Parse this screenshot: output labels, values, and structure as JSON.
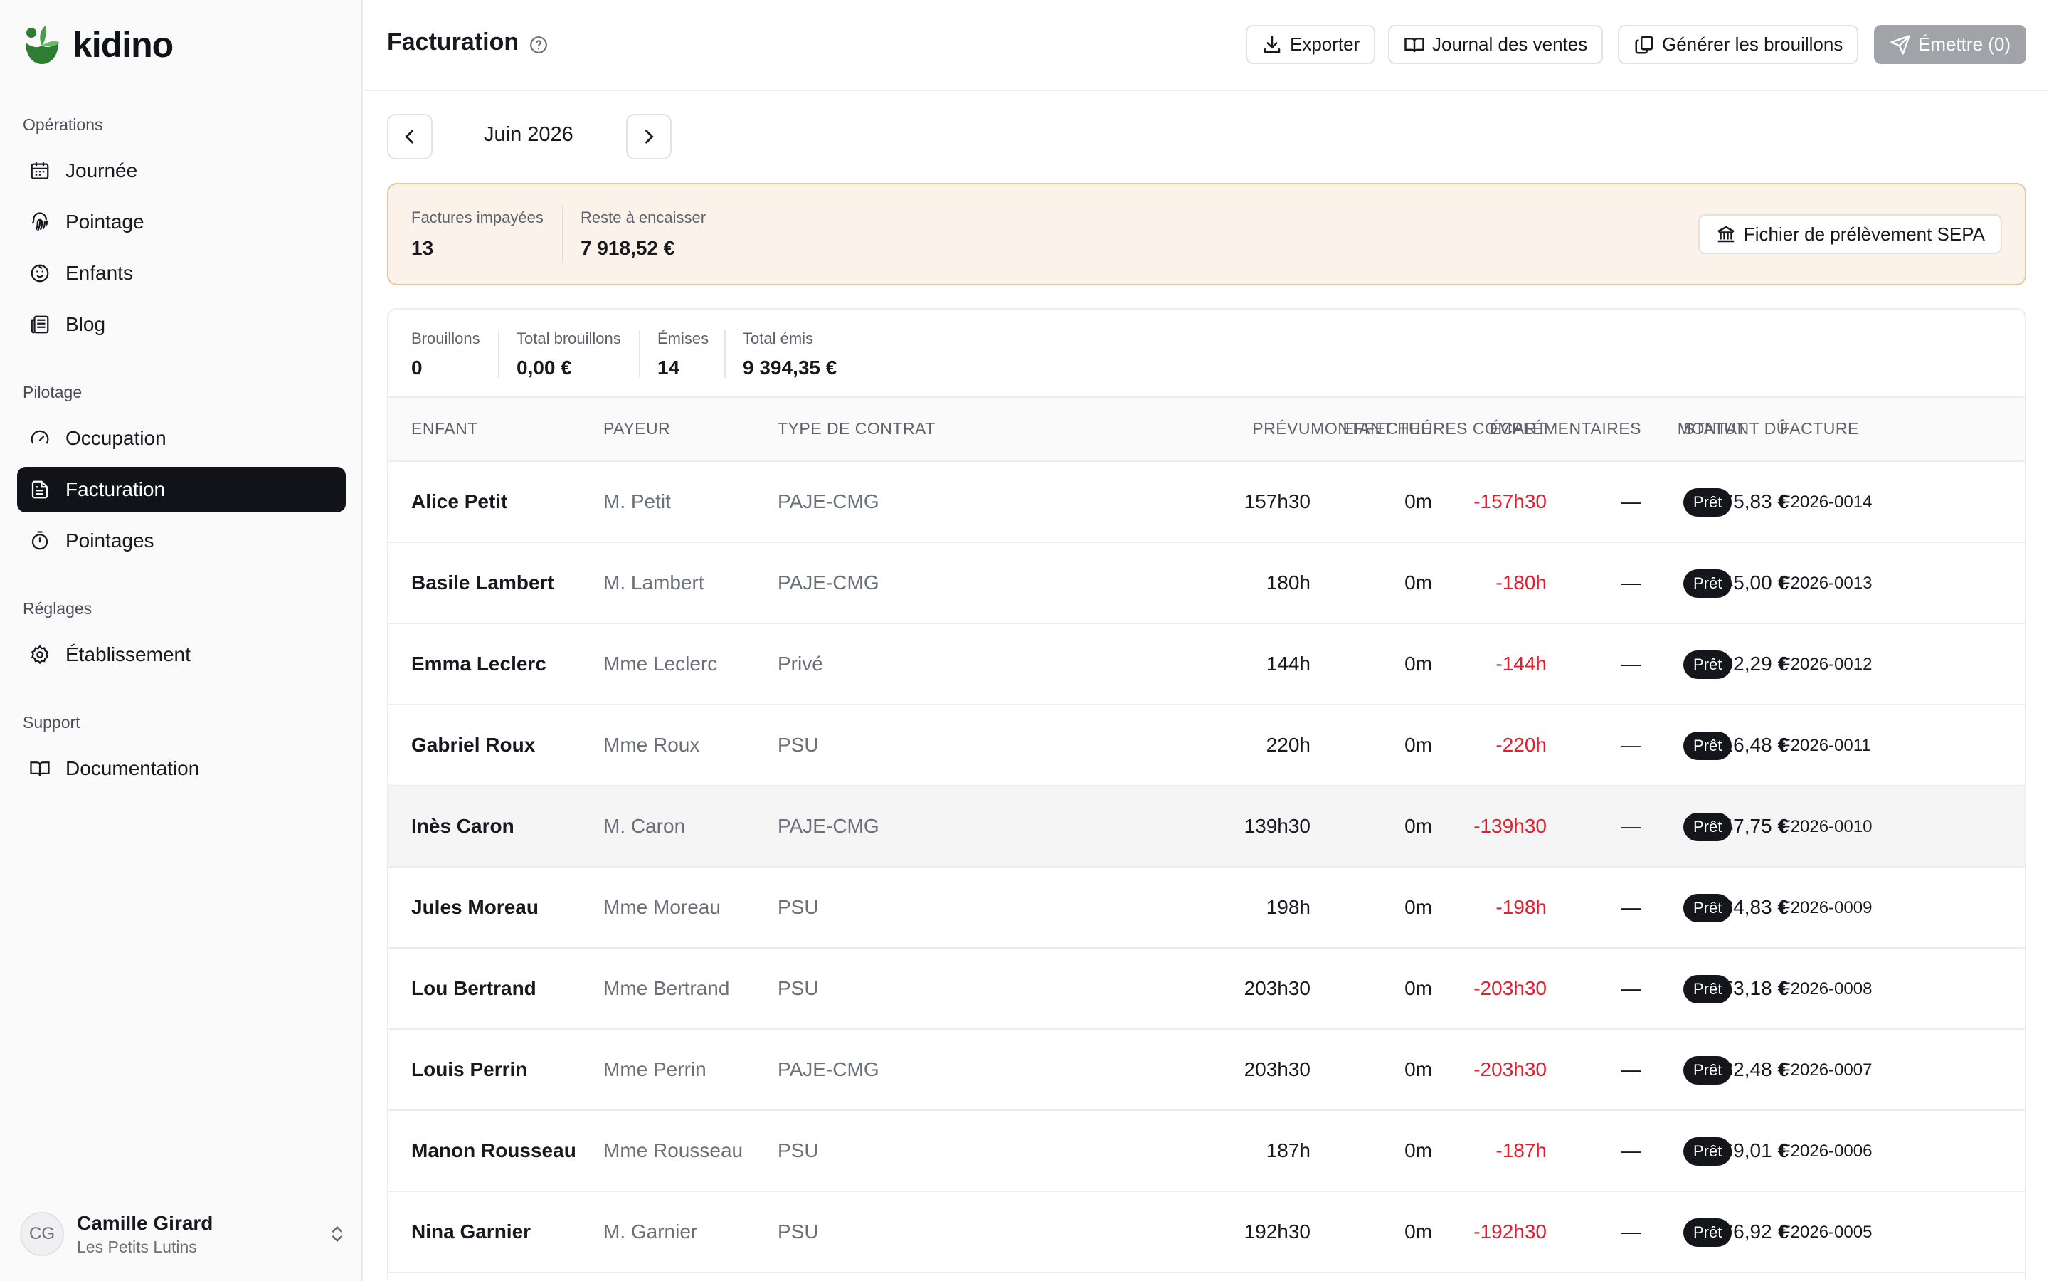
{
  "brand": {
    "name": "kidino",
    "accent": "#4caf50"
  },
  "sidebar": {
    "sections": [
      {
        "label": "Opérations"
      },
      {
        "label": "Pilotage"
      },
      {
        "label": "Réglages"
      },
      {
        "label": "Support"
      }
    ],
    "items": [
      {
        "label": "Journée",
        "icon": "calendar-icon"
      },
      {
        "label": "Pointage",
        "icon": "fingerprint-icon"
      },
      {
        "label": "Enfants",
        "icon": "baby-icon"
      },
      {
        "label": "Blog",
        "icon": "newspaper-icon"
      },
      {
        "label": "Occupation",
        "icon": "gauge-icon"
      },
      {
        "label": "Facturation",
        "icon": "file-text-icon",
        "active": true
      },
      {
        "label": "Pointages",
        "icon": "timer-icon"
      },
      {
        "label": "Établissement",
        "icon": "gear-icon"
      },
      {
        "label": "Documentation",
        "icon": "book-icon"
      }
    ],
    "user": {
      "initials": "CG",
      "name": "Camille Girard",
      "org": "Les Petits Lutins"
    }
  },
  "header": {
    "title": "Facturation",
    "buttons": {
      "export": "Exporter",
      "journal": "Journal des ventes",
      "generate": "Générer les brouillons",
      "emit": "Émettre (0)"
    }
  },
  "month": {
    "label": "Juin 2026"
  },
  "banner": {
    "unpaid_label": "Factures impayées",
    "unpaid_value": "13",
    "remaining_label": "Reste à encaisser",
    "remaining_value": "7 918,52 €",
    "sepa_button": "Fichier de prélèvement SEPA"
  },
  "summary": {
    "drafts_label": "Brouillons",
    "drafts_value": "0",
    "drafts_total_label": "Total brouillons",
    "drafts_total_value": "0,00 €",
    "issued_label": "Émises",
    "issued_value": "14",
    "issued_total_label": "Total émis",
    "issued_total_value": "9 394,35 €"
  },
  "table": {
    "columns": {
      "child": "ENFANT",
      "payer": "PAYEUR",
      "contract": "TYPE DE CONTRAT",
      "planned": "PRÉVU",
      "done": "EFFECTUÉ",
      "gap": "ÉCART",
      "extra": "MONTANT HEURES COMPLÉMENTAIRES",
      "due": "MONTANT DÛ",
      "status": "STATUT",
      "invoice": "FACTURE"
    },
    "rows": [
      {
        "child": "Alice Petit",
        "payer": "M. Petit",
        "contract": "PAJE-CMG",
        "planned": "157h30",
        "done": "0m",
        "gap": "-157h30",
        "extra": "—",
        "due": "1 475,83 €",
        "status": "Prêt",
        "invoice": "F2026-0014"
      },
      {
        "child": "Basile Lambert",
        "payer": "M. Lambert",
        "contract": "PAJE-CMG",
        "planned": "180h",
        "done": "0m",
        "gap": "-180h",
        "extra": "—",
        "due": "45,00 €",
        "status": "Prêt",
        "invoice": "F2026-0013"
      },
      {
        "child": "Emma Leclerc",
        "payer": "Mme Leclerc",
        "contract": "Privé",
        "planned": "144h",
        "done": "0m",
        "gap": "-144h",
        "extra": "—",
        "due": "1 302,29 €",
        "status": "Prêt",
        "invoice": "F2026-0012"
      },
      {
        "child": "Gabriel Roux",
        "payer": "Mme Roux",
        "contract": "PSU",
        "planned": "220h",
        "done": "0m",
        "gap": "-220h",
        "extra": "—",
        "due": "316,48 €",
        "status": "Prêt",
        "invoice": "F2026-0011"
      },
      {
        "child": "Inès Caron",
        "payer": "M. Caron",
        "contract": "PAJE-CMG",
        "planned": "139h30",
        "done": "0m",
        "gap": "-139h30",
        "extra": "—",
        "due": "1 247,75 €",
        "status": "Prêt",
        "invoice": "F2026-0010",
        "highlight": true
      },
      {
        "child": "Jules Moreau",
        "payer": "Mme Moreau",
        "contract": "PSU",
        "planned": "198h",
        "done": "0m",
        "gap": "-198h",
        "extra": "—",
        "due": "284,83 €",
        "status": "Prêt",
        "invoice": "F2026-0009"
      },
      {
        "child": "Lou Bertrand",
        "payer": "Mme Bertrand",
        "contract": "PSU",
        "planned": "203h30",
        "done": "0m",
        "gap": "-203h30",
        "extra": "—",
        "due": "253,18 €",
        "status": "Prêt",
        "invoice": "F2026-0008"
      },
      {
        "child": "Louis Perrin",
        "payer": "Mme Perrin",
        "contract": "PAJE-CMG",
        "planned": "203h30",
        "done": "0m",
        "gap": "-203h30",
        "extra": "—",
        "due": "1 932,48 €",
        "status": "Prêt",
        "invoice": "F2026-0007"
      },
      {
        "child": "Manon Rousseau",
        "payer": "Mme Rousseau",
        "contract": "PSU",
        "planned": "187h",
        "done": "0m",
        "gap": "-187h",
        "extra": "—",
        "due": "269,01 €",
        "status": "Prêt",
        "invoice": "F2026-0006"
      },
      {
        "child": "Nina Garnier",
        "payer": "M. Garnier",
        "contract": "PSU",
        "planned": "192h30",
        "done": "0m",
        "gap": "-192h30",
        "extra": "—",
        "due": "276,92 €",
        "status": "Prêt",
        "invoice": "F2026-0005"
      }
    ]
  },
  "colors": {
    "negative": "#e0202e",
    "banner_bg": "#fbf3ea",
    "banner_border": "#edc498",
    "active_nav": "#111318"
  }
}
